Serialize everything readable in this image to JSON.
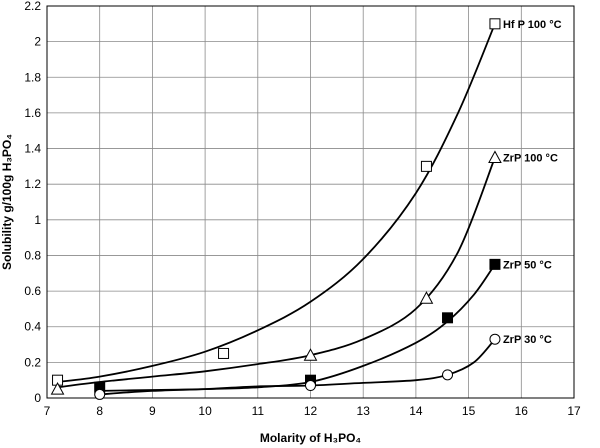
{
  "chart_data": {
    "type": "line",
    "title": "",
    "xlabel": "Molarity of H₃PO₄",
    "ylabel": "Solubility g/100g H₃PO₄",
    "xlim": [
      7,
      17
    ],
    "ylim": [
      0,
      2.2
    ],
    "x_ticks": [
      7,
      8,
      9,
      10,
      11,
      12,
      13,
      14,
      15,
      16,
      17
    ],
    "y_ticks": [
      0,
      0.2,
      0.4,
      0.6,
      0.8,
      1,
      1.2,
      1.4,
      1.6,
      1.8,
      2,
      2.2
    ],
    "grid": true,
    "series": [
      {
        "name": "Hf P  100 °C",
        "marker": "square-open",
        "points": [
          [
            7.2,
            0.1
          ],
          [
            10.35,
            0.25
          ],
          [
            14.2,
            1.3
          ],
          [
            15.5,
            2.1
          ]
        ],
        "curve": [
          [
            7.2,
            0.09
          ],
          [
            8,
            0.12
          ],
          [
            9,
            0.18
          ],
          [
            10,
            0.26
          ],
          [
            11,
            0.38
          ],
          [
            12,
            0.54
          ],
          [
            13,
            0.78
          ],
          [
            14,
            1.15
          ],
          [
            14.8,
            1.6
          ],
          [
            15.5,
            2.1
          ]
        ]
      },
      {
        "name": "ZrP  100 °C",
        "marker": "triangle-open",
        "points": [
          [
            7.2,
            0.05
          ],
          [
            12,
            0.24
          ],
          [
            14.2,
            0.56
          ],
          [
            15.5,
            1.35
          ]
        ],
        "curve": [
          [
            7.2,
            0.06
          ],
          [
            8,
            0.09
          ],
          [
            9,
            0.12
          ],
          [
            10,
            0.15
          ],
          [
            11,
            0.19
          ],
          [
            12,
            0.24
          ],
          [
            13,
            0.33
          ],
          [
            14,
            0.5
          ],
          [
            14.8,
            0.82
          ],
          [
            15.5,
            1.35
          ]
        ]
      },
      {
        "name": "ZrP 50 °C",
        "marker": "square-filled",
        "points": [
          [
            8,
            0.06
          ],
          [
            12,
            0.1
          ],
          [
            14.6,
            0.45
          ],
          [
            15.5,
            0.75
          ]
        ],
        "curve": [
          [
            8,
            0.04
          ],
          [
            9,
            0.045
          ],
          [
            10,
            0.05
          ],
          [
            11,
            0.06
          ],
          [
            12,
            0.09
          ],
          [
            13,
            0.18
          ],
          [
            14,
            0.31
          ],
          [
            14.6,
            0.43
          ],
          [
            15.1,
            0.58
          ],
          [
            15.5,
            0.75
          ]
        ]
      },
      {
        "name": "ZrP  30 °C",
        "marker": "circle-open",
        "points": [
          [
            8,
            0.02
          ],
          [
            12,
            0.07
          ],
          [
            14.6,
            0.13
          ],
          [
            15.5,
            0.33
          ]
        ],
        "curve": [
          [
            8,
            0.02
          ],
          [
            9,
            0.04
          ],
          [
            10,
            0.05
          ],
          [
            11,
            0.065
          ],
          [
            12,
            0.07
          ],
          [
            13,
            0.085
          ],
          [
            14,
            0.1
          ],
          [
            14.6,
            0.13
          ],
          [
            15.1,
            0.2
          ],
          [
            15.5,
            0.33
          ]
        ]
      }
    ]
  }
}
